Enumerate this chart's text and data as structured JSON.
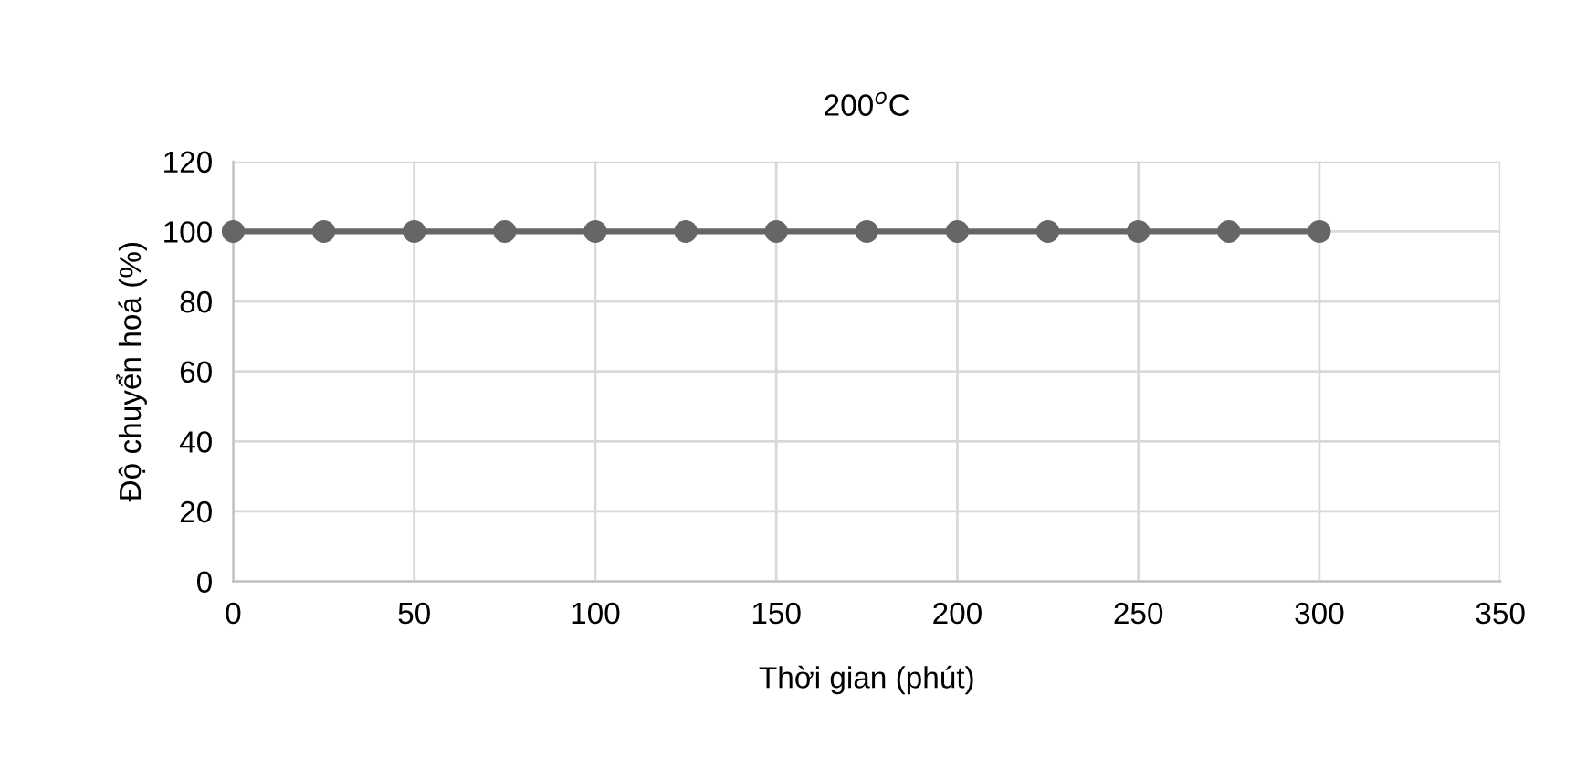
{
  "chart_data": {
    "type": "line",
    "title": "200$^{o}$C",
    "xlabel": "Thời gian (phút)",
    "ylabel": "Độ chuyển hoá (%)",
    "x": [
      0,
      25,
      50,
      75,
      100,
      125,
      150,
      175,
      200,
      225,
      250,
      275,
      300
    ],
    "series": [
      {
        "color": "#666666",
        "values": [
          100,
          100,
          100,
          100,
          100,
          100,
          100,
          100,
          100,
          100,
          100,
          100,
          100
        ]
      }
    ],
    "xlim": [
      0,
      350
    ],
    "xticks": [
      0,
      50,
      100,
      150,
      200,
      250,
      300,
      350
    ],
    "ylim": [
      0,
      120
    ],
    "yticks": [
      0,
      20,
      40,
      60,
      80,
      100,
      120
    ],
    "grid": true,
    "marker": "circle",
    "line_style": "solid"
  }
}
